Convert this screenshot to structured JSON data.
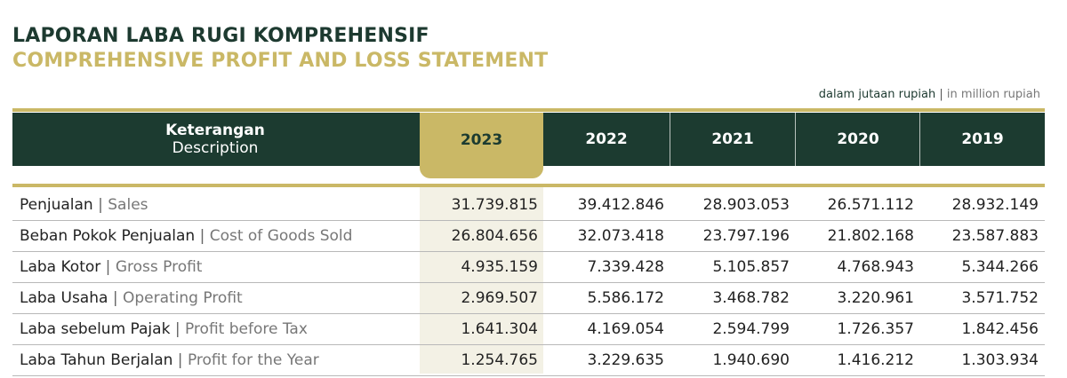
{
  "title_id": "LAPORAN LABA RUGI KOMPREHENSIF",
  "title_en": "COMPREHENSIVE PROFIT AND LOSS STATEMENT",
  "unit": {
    "id": "dalam jutaan rupiah",
    "sep": "|",
    "en": "in million rupiah"
  },
  "header": {
    "description_id": "Keterangan",
    "description_en": "Description",
    "years": [
      "2023",
      "2022",
      "2021",
      "2020",
      "2019"
    ]
  },
  "colors": {
    "dark_green": "#1c3b30",
    "gold": "#cab866",
    "highlight_bg": "#f3f1e5"
  },
  "rows": [
    {
      "id": "Penjualan",
      "en": "Sales",
      "values": [
        "31.739.815",
        "39.412.846",
        "28.903.053",
        "26.571.112",
        "28.932.149"
      ]
    },
    {
      "id": "Beban Pokok Penjualan",
      "en": "Cost of Goods Sold",
      "values": [
        "26.804.656",
        "32.073.418",
        "23.797.196",
        "21.802.168",
        "23.587.883"
      ]
    },
    {
      "id": "Laba Kotor",
      "en": "Gross Profit",
      "values": [
        "4.935.159",
        "7.339.428",
        "5.105.857",
        "4.768.943",
        "5.344.266"
      ]
    },
    {
      "id": "Laba Usaha",
      "en": "Operating Profit",
      "values": [
        "2.969.507",
        "5.586.172",
        "3.468.782",
        "3.220.961",
        "3.571.752"
      ]
    },
    {
      "id": "Laba sebelum Pajak",
      "en": "Profit before Tax",
      "values": [
        "1.641.304",
        "4.169.054",
        "2.594.799",
        "1.726.357",
        "1.842.456"
      ]
    },
    {
      "id": "Laba Tahun Berjalan",
      "en": "Profit for the Year",
      "values": [
        "1.254.765",
        "3.229.635",
        "1.940.690",
        "1.416.212",
        "1.303.934"
      ]
    }
  ]
}
